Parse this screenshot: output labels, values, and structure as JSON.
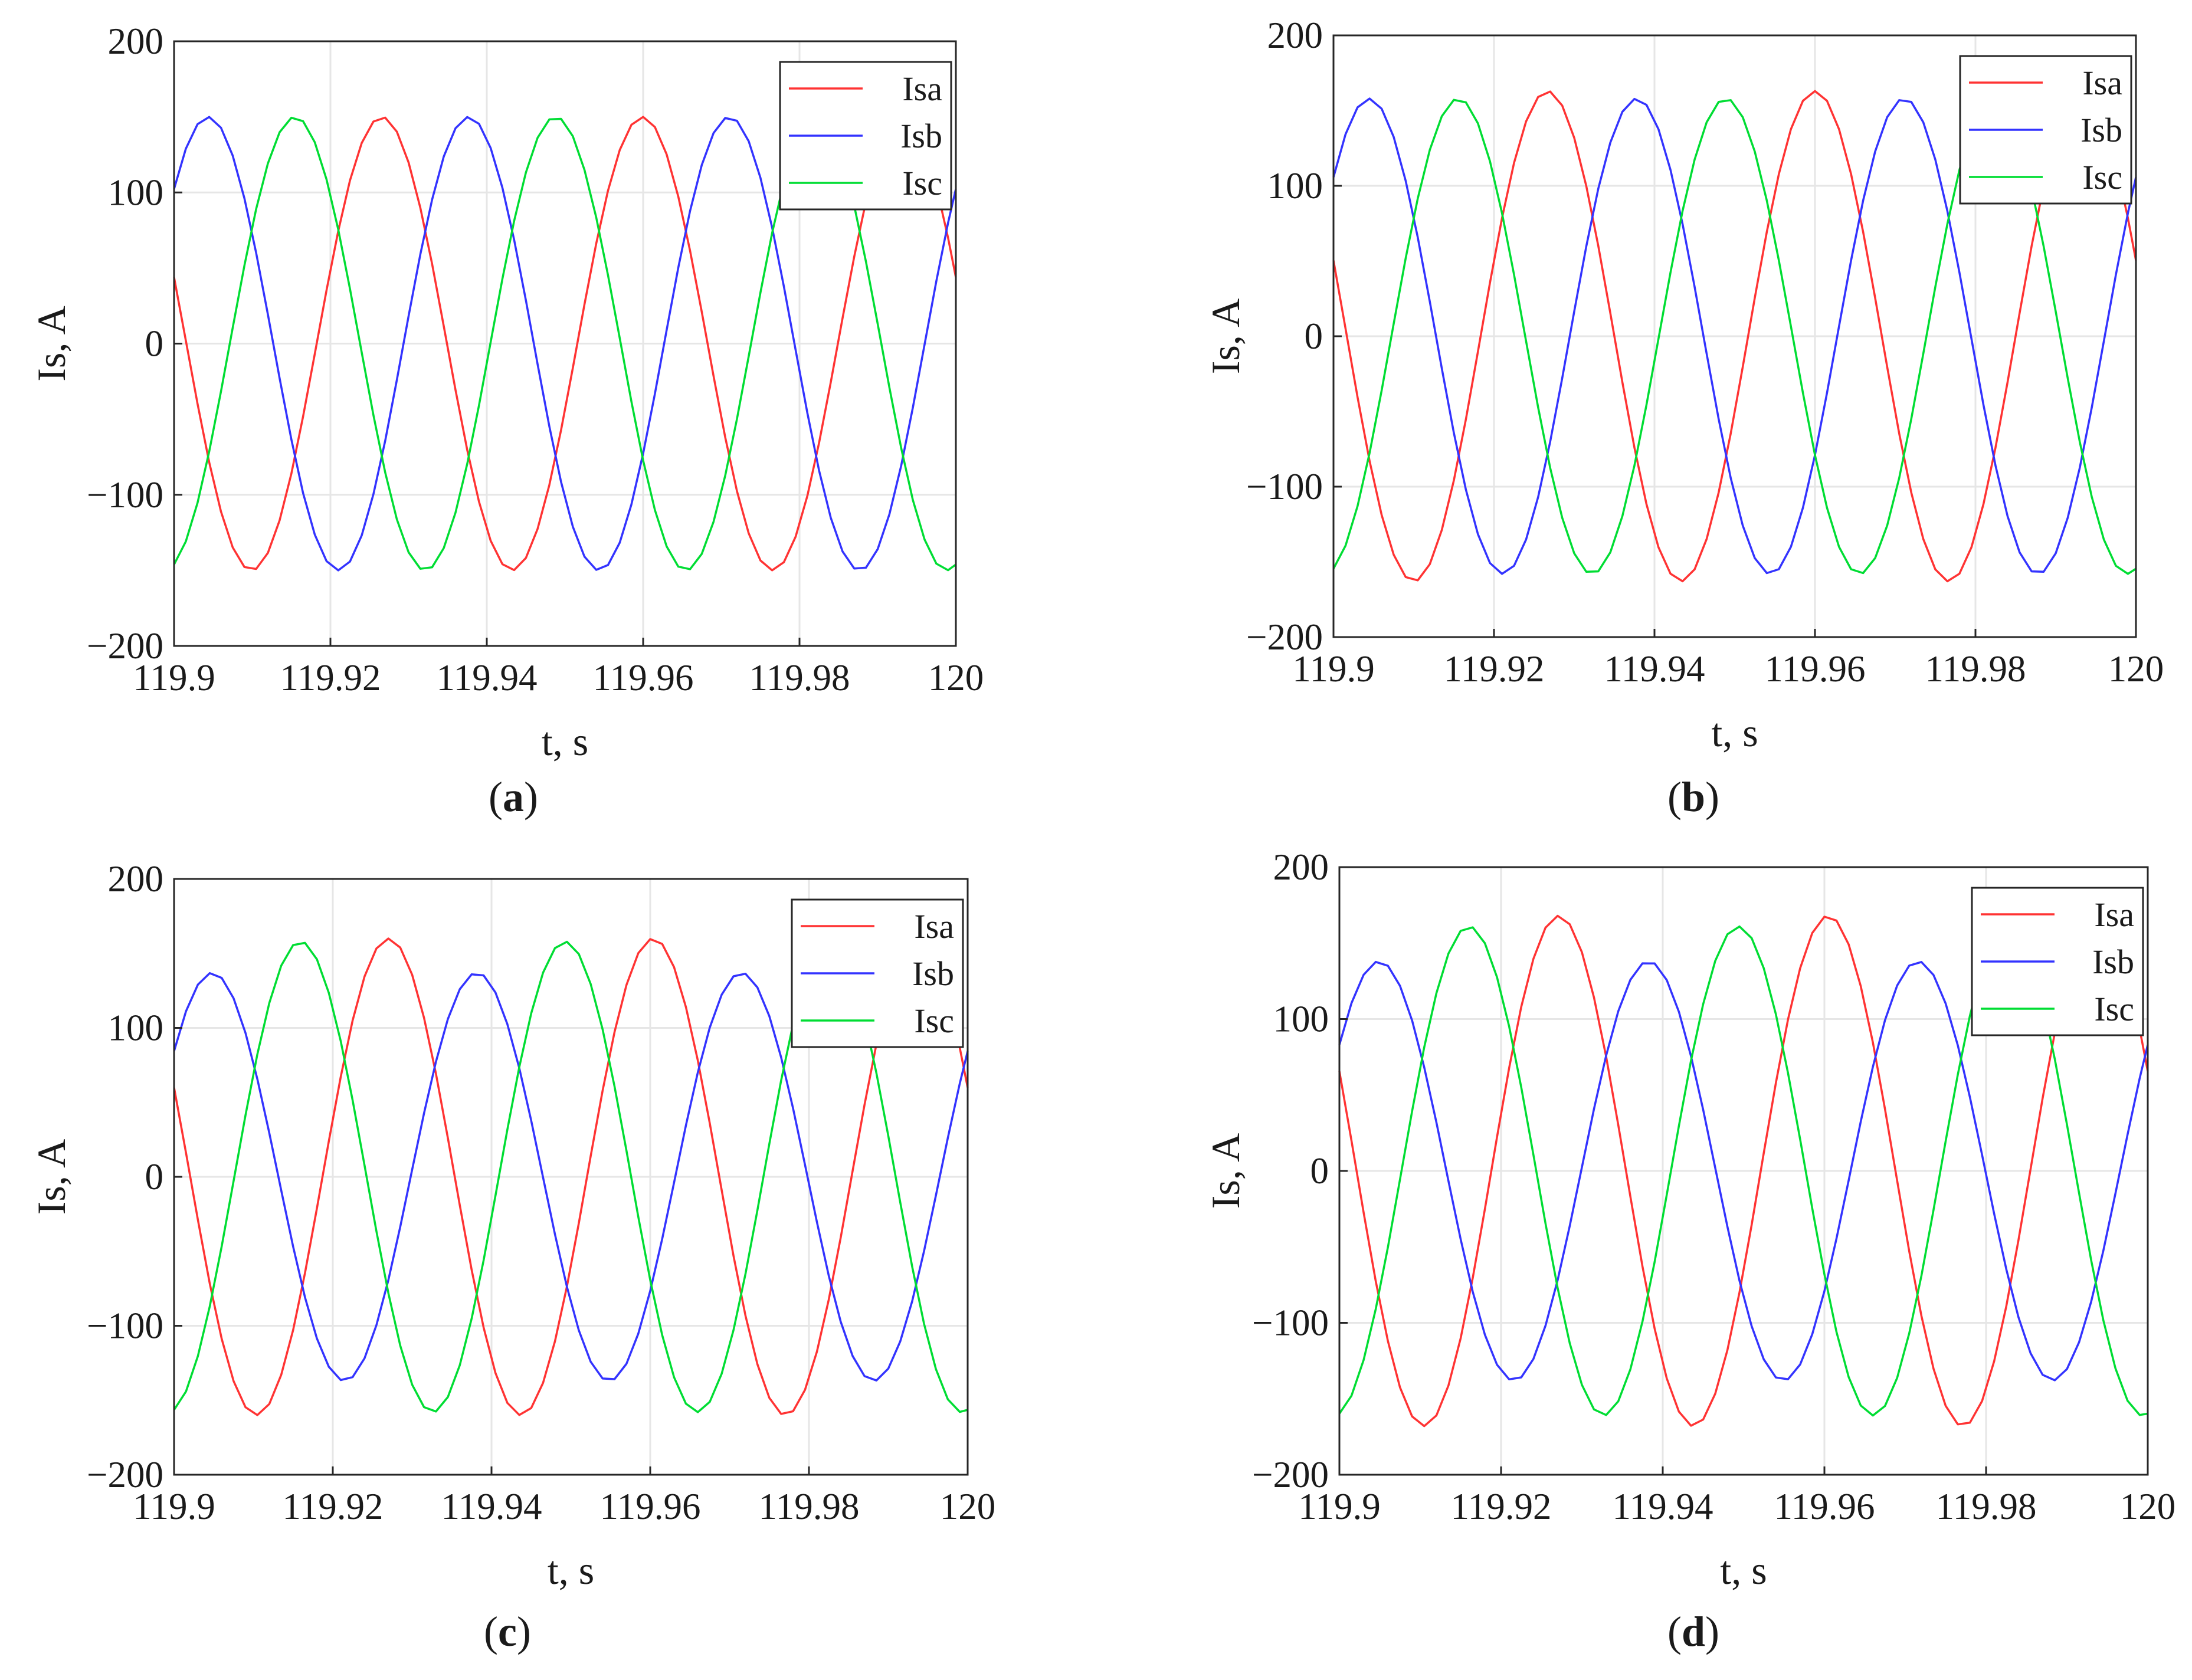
{
  "chart_data": [
    {
      "type": "line",
      "xlabel": "t, s",
      "ylabel": "Is, A",
      "xlim": [
        119.9,
        120
      ],
      "ylim": [
        -200,
        200
      ],
      "xticks": [
        "119.9",
        "119.92",
        "119.94",
        "119.96",
        "119.98",
        "120"
      ],
      "yticks": [
        "200",
        "100",
        "0",
        "−100",
        "−200"
      ],
      "grid": true,
      "legend": {
        "position": "top-right",
        "entries": [
          "Isa",
          "Isb",
          "Isc"
        ]
      },
      "caption": {
        "open": "(",
        "letter": "a",
        "close": ")"
      },
      "frequency_hz": 30,
      "sample_step_s": 0.0015,
      "series": [
        {
          "name": "Isa",
          "color": "#ff3333",
          "amplitude": 150,
          "phase_deg": 163
        },
        {
          "name": "Isb",
          "color": "#3333ff",
          "amplitude": 150,
          "phase_deg": 43
        },
        {
          "name": "Isc",
          "color": "#00dd33",
          "amplitude": 150,
          "phase_deg": 283
        }
      ]
    },
    {
      "type": "line",
      "xlabel": "t, s",
      "ylabel": "Is, A",
      "xlim": [
        119.9,
        120
      ],
      "ylim": [
        -200,
        200
      ],
      "xticks": [
        "119.9",
        "119.92",
        "119.94",
        "119.96",
        "119.98",
        "120"
      ],
      "yticks": [
        "200",
        "100",
        "0",
        "−100",
        "−200"
      ],
      "grid": true,
      "legend": {
        "position": "top-right",
        "entries": [
          "Isa",
          "Isb",
          "Isc"
        ]
      },
      "caption": {
        "open": "(",
        "letter": "b",
        "close": ")"
      },
      "frequency_hz": 30,
      "sample_step_s": 0.0015,
      "series": [
        {
          "name": "Isa",
          "color": "#ff3333",
          "amplitude": 163,
          "phase_deg": 162
        },
        {
          "name": "Isb",
          "color": "#3333ff",
          "amplitude": 158,
          "phase_deg": 42
        },
        {
          "name": "Isc",
          "color": "#00dd33",
          "amplitude": 158,
          "phase_deg": 282
        }
      ]
    },
    {
      "type": "line",
      "xlabel": "t, s",
      "ylabel": "Is, A",
      "xlim": [
        119.9,
        120
      ],
      "ylim": [
        -200,
        200
      ],
      "xticks": [
        "119.9",
        "119.92",
        "119.94",
        "119.96",
        "119.98",
        "120"
      ],
      "yticks": [
        "200",
        "100",
        "0",
        "−100",
        "−200"
      ],
      "grid": true,
      "legend": {
        "position": "top-right",
        "entries": [
          "Isa",
          "Isb",
          "Isc"
        ]
      },
      "caption": {
        "open": "(",
        "letter": "c",
        "close": ")"
      },
      "frequency_hz": 30,
      "sample_step_s": 0.0015,
      "series": [
        {
          "name": "Isa",
          "color": "#ff3333",
          "amplitude": 160,
          "phase_deg": 158
        },
        {
          "name": "Isb",
          "color": "#3333ff",
          "amplitude": 137,
          "phase_deg": 38
        },
        {
          "name": "Isc",
          "color": "#00dd33",
          "amplitude": 158,
          "phase_deg": 278
        }
      ]
    },
    {
      "type": "line",
      "xlabel": "t, s",
      "ylabel": "Is, A",
      "xlim": [
        119.9,
        120
      ],
      "ylim": [
        -200,
        200
      ],
      "xticks": [
        "119.9",
        "119.92",
        "119.94",
        "119.96",
        "119.98",
        "120"
      ],
      "yticks": [
        "200",
        "100",
        "0",
        "−100",
        "−200"
      ],
      "grid": true,
      "legend": {
        "position": "top-right",
        "entries": [
          "Isa",
          "Isb",
          "Isc"
        ]
      },
      "caption": {
        "open": "(",
        "letter": "d",
        "close": ")"
      },
      "frequency_hz": 30,
      "sample_step_s": 0.0015,
      "series": [
        {
          "name": "Isa",
          "color": "#ff3333",
          "amplitude": 168,
          "phase_deg": 157
        },
        {
          "name": "Isb",
          "color": "#3333ff",
          "amplitude": 138,
          "phase_deg": 37
        },
        {
          "name": "Isc",
          "color": "#00dd33",
          "amplitude": 161,
          "phase_deg": 277
        }
      ]
    }
  ]
}
